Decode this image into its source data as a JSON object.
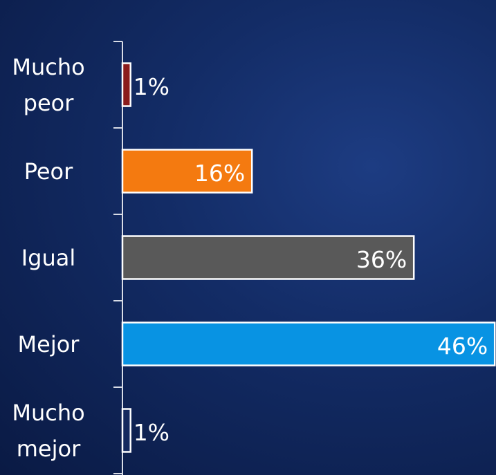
{
  "chart_data": {
    "type": "bar",
    "orientation": "horizontal",
    "categories": [
      "Mucho peor",
      "Peor",
      "Igual",
      "Mejor",
      "Mucho mejor"
    ],
    "values": [
      1,
      16,
      36,
      46,
      1
    ],
    "value_labels": [
      "1%",
      "16%",
      "36%",
      "46%",
      "1%"
    ],
    "colors": [
      "#8b1c1c",
      "#f47a10",
      "#595959",
      "#0893e3",
      "#14295e"
    ]
  }
}
